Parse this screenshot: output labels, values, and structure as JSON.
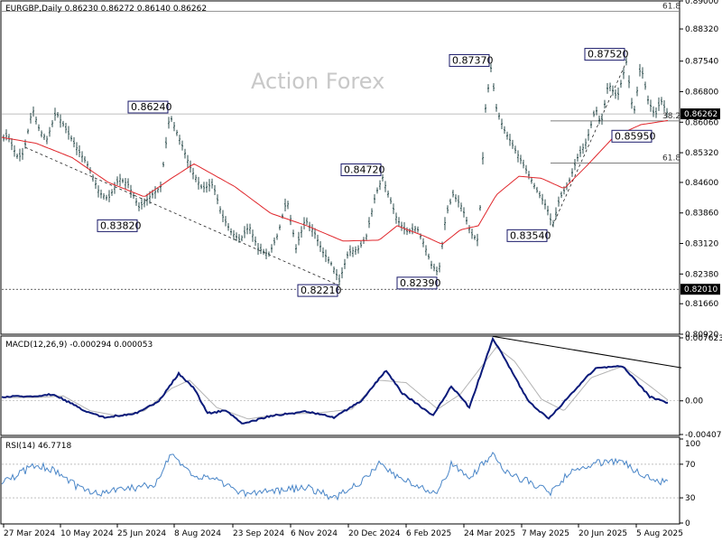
{
  "header": {
    "symbol_info": "EURGBP,Daily  0.86230 0.86272 0.86140 0.86262"
  },
  "watermark": "Action Forex",
  "colors": {
    "price": "#2f4f4f",
    "ma": "#e0262b",
    "macd": "#0a1a7a",
    "signal": "#b4b4b4",
    "rsi": "#4a86c8",
    "current_bg": "#000000"
  },
  "chart_data": [
    {
      "type": "line",
      "panel": "price",
      "ylim": [
        0.8092,
        0.89
      ],
      "y_ticks": [
        "0.89000",
        "0.88320",
        "0.87540",
        "0.86800",
        "0.86060",
        "0.85320",
        "0.84600",
        "0.83860",
        "0.83120",
        "0.82380",
        "0.81660",
        "0.80920"
      ],
      "x_ticks": [
        "27 Mar 2024",
        "10 May 2024",
        "25 Jun 2024",
        "8 Aug 2024",
        "23 Sep 2024",
        "6 Nov 2024",
        "20 Dec 2024",
        "6 Feb 2025",
        "24 Mar 2025",
        "7 May 2025",
        "20 Jun 2025",
        "5 Aug 2025"
      ],
      "keypoints": [
        [
          0,
          0.8555
        ],
        [
          8,
          0.8575
        ],
        [
          14,
          0.8545
        ],
        [
          20,
          0.852
        ],
        [
          26,
          0.853
        ],
        [
          36,
          0.864
        ],
        [
          44,
          0.8585
        ],
        [
          52,
          0.8565
        ],
        [
          62,
          0.863
        ],
        [
          74,
          0.8585
        ],
        [
          86,
          0.854
        ],
        [
          98,
          0.85
        ],
        [
          110,
          0.8435
        ],
        [
          120,
          0.842
        ],
        [
          132,
          0.847
        ],
        [
          142,
          0.8455
        ],
        [
          154,
          0.84
        ],
        [
          166,
          0.8425
        ],
        [
          178,
          0.845
        ],
        [
          188,
          0.8624
        ],
        [
          200,
          0.856
        ],
        [
          212,
          0.849
        ],
        [
          224,
          0.8445
        ],
        [
          236,
          0.8455
        ],
        [
          246,
          0.838
        ],
        [
          256,
          0.834
        ],
        [
          266,
          0.832
        ],
        [
          276,
          0.8355
        ],
        [
          286,
          0.83
        ],
        [
          298,
          0.8285
        ],
        [
          308,
          0.8335
        ],
        [
          318,
          0.842
        ],
        [
          328,
          0.83
        ],
        [
          338,
          0.837
        ],
        [
          348,
          0.834
        ],
        [
          358,
          0.829
        ],
        [
          368,
          0.826
        ],
        [
          376,
          0.8221
        ],
        [
          386,
          0.829
        ],
        [
          398,
          0.83
        ],
        [
          406,
          0.833
        ],
        [
          416,
          0.843
        ],
        [
          424,
          0.8472
        ],
        [
          432,
          0.842
        ],
        [
          440,
          0.837
        ],
        [
          450,
          0.834
        ],
        [
          462,
          0.835
        ],
        [
          470,
          0.831
        ],
        [
          478,
          0.826
        ],
        [
          486,
          0.8239
        ],
        [
          494,
          0.838
        ],
        [
          502,
          0.843
        ],
        [
          512,
          0.84
        ],
        [
          522,
          0.8335
        ],
        [
          530,
          0.832
        ],
        [
          538,
          0.864
        ],
        [
          544,
          0.8737
        ],
        [
          550,
          0.864
        ],
        [
          558,
          0.859
        ],
        [
          568,
          0.855
        ],
        [
          578,
          0.851
        ],
        [
          588,
          0.847
        ],
        [
          596,
          0.8435
        ],
        [
          606,
          0.84
        ],
        [
          612,
          0.8354
        ],
        [
          620,
          0.842
        ],
        [
          630,
          0.846
        ],
        [
          640,
          0.852
        ],
        [
          650,
          0.856
        ],
        [
          660,
          0.864
        ],
        [
          666,
          0.86
        ],
        [
          674,
          0.87
        ],
        [
          684,
          0.8665
        ],
        [
          694,
          0.8752
        ],
        [
          702,
          0.862
        ],
        [
          710,
          0.8745
        ],
        [
          718,
          0.866
        ],
        [
          726,
          0.862
        ],
        [
          732,
          0.866
        ],
        [
          740,
          0.8626
        ]
      ],
      "ma_keypoints": [
        [
          0,
          0.857
        ],
        [
          40,
          0.8555
        ],
        [
          80,
          0.852
        ],
        [
          120,
          0.846
        ],
        [
          160,
          0.8425
        ],
        [
          190,
          0.847
        ],
        [
          215,
          0.8505
        ],
        [
          260,
          0.845
        ],
        [
          300,
          0.8385
        ],
        [
          340,
          0.8355
        ],
        [
          380,
          0.8318
        ],
        [
          420,
          0.832
        ],
        [
          440,
          0.8355
        ],
        [
          470,
          0.833
        ],
        [
          490,
          0.831
        ],
        [
          510,
          0.8345
        ],
        [
          530,
          0.8355
        ],
        [
          550,
          0.843
        ],
        [
          575,
          0.8475
        ],
        [
          600,
          0.847
        ],
        [
          625,
          0.8445
        ],
        [
          650,
          0.85
        ],
        [
          680,
          0.857
        ],
        [
          710,
          0.86
        ],
        [
          740,
          0.861
        ]
      ],
      "price_labels": [
        {
          "text": "0.86240",
          "x": 188,
          "y": 0.8624,
          "side": "left"
        },
        {
          "text": "0.83820",
          "x": 154,
          "y": 0.8378,
          "side": "left"
        },
        {
          "text": "0.84720",
          "x": 424,
          "y": 0.8472,
          "side": "left"
        },
        {
          "text": "0.82210",
          "x": 376,
          "y": 0.8221,
          "side": "left"
        },
        {
          "text": "0.82390",
          "x": 486,
          "y": 0.8239,
          "side": "left"
        },
        {
          "text": "0.87370",
          "x": 544,
          "y": 0.8737,
          "side": "left"
        },
        {
          "text": "0.83540",
          "x": 608,
          "y": 0.8354,
          "side": "left"
        },
        {
          "text": "0.87520",
          "x": 694,
          "y": 0.8752,
          "side": "left"
        },
        {
          "text": "0.85950",
          "x": 712,
          "y": 0.8595,
          "side": "left"
        }
      ],
      "fibo_labels": [
        {
          "text": "61.8",
          "y": 0.8875
        },
        {
          "text": "38.2",
          "y": 0.8609
        },
        {
          "text": "61.8",
          "y": 0.8507
        }
      ],
      "support_level": "0.82010",
      "current_price": "0.86262"
    },
    {
      "type": "line",
      "panel": "macd",
      "title": "MACD(12,26,9) -0.000294 0.000053",
      "ylim": [
        -0.004073,
        0.007623
      ],
      "y_ticks": [
        "0.007623",
        "0.00",
        "-0.004073"
      ],
      "macd_keypoints": [
        [
          0,
          0.0005
        ],
        [
          30,
          0.0005
        ],
        [
          60,
          0.0008
        ],
        [
          90,
          -0.001
        ],
        [
          115,
          -0.002
        ],
        [
          150,
          -0.0015
        ],
        [
          175,
          -0.0002
        ],
        [
          198,
          0.0033
        ],
        [
          215,
          0.0015
        ],
        [
          230,
          -0.0015
        ],
        [
          250,
          -0.0012
        ],
        [
          270,
          -0.0028
        ],
        [
          300,
          -0.0018
        ],
        [
          340,
          -0.0013
        ],
        [
          370,
          -0.002
        ],
        [
          400,
          0.0
        ],
        [
          428,
          0.0037
        ],
        [
          445,
          0.001
        ],
        [
          480,
          -0.0018
        ],
        [
          500,
          0.0018
        ],
        [
          520,
          -0.0008
        ],
        [
          546,
          0.0075
        ],
        [
          560,
          0.005
        ],
        [
          585,
          0.0
        ],
        [
          608,
          -0.0022
        ],
        [
          630,
          0.0005
        ],
        [
          660,
          0.004
        ],
        [
          690,
          0.0042
        ],
        [
          720,
          0.0005
        ],
        [
          740,
          -0.0003
        ]
      ],
      "signal_keypoints": [
        [
          0,
          0.0004
        ],
        [
          40,
          0.0004
        ],
        [
          70,
          0.0006
        ],
        [
          100,
          -0.0012
        ],
        [
          130,
          -0.0018
        ],
        [
          160,
          -0.0012
        ],
        [
          190,
          0.0015
        ],
        [
          210,
          0.0025
        ],
        [
          240,
          -0.0008
        ],
        [
          275,
          -0.0022
        ],
        [
          310,
          -0.0016
        ],
        [
          350,
          -0.0015
        ],
        [
          390,
          -0.001
        ],
        [
          420,
          0.0025
        ],
        [
          450,
          0.0022
        ],
        [
          485,
          -0.001
        ],
        [
          510,
          0.0008
        ],
        [
          550,
          0.0065
        ],
        [
          570,
          0.0048
        ],
        [
          600,
          0.0002
        ],
        [
          625,
          -0.0012
        ],
        [
          655,
          0.0028
        ],
        [
          690,
          0.0042
        ],
        [
          720,
          0.0018
        ],
        [
          740,
          0.0001
        ]
      ],
      "trendline": [
        [
          546,
          0.0078
        ],
        [
          755,
          0.004
        ]
      ]
    },
    {
      "type": "line",
      "panel": "rsi",
      "title": "RSI(14) 46.7718",
      "ylim": [
        0,
        100
      ],
      "y_ticks": [
        "100",
        "70",
        "30",
        "0"
      ],
      "levels": [
        70,
        30
      ],
      "keypoints": [
        [
          0,
          45
        ],
        [
          40,
          70
        ],
        [
          60,
          62
        ],
        [
          90,
          40
        ],
        [
          110,
          35
        ],
        [
          150,
          42
        ],
        [
          170,
          45
        ],
        [
          190,
          82
        ],
        [
          210,
          60
        ],
        [
          240,
          50
        ],
        [
          270,
          35
        ],
        [
          300,
          38
        ],
        [
          340,
          42
        ],
        [
          370,
          30
        ],
        [
          400,
          48
        ],
        [
          420,
          72
        ],
        [
          445,
          52
        ],
        [
          485,
          35
        ],
        [
          500,
          70
        ],
        [
          520,
          52
        ],
        [
          546,
          84
        ],
        [
          560,
          60
        ],
        [
          590,
          48
        ],
        [
          610,
          36
        ],
        [
          630,
          60
        ],
        [
          660,
          72
        ],
        [
          690,
          72
        ],
        [
          720,
          52
        ],
        [
          740,
          47
        ]
      ]
    }
  ]
}
